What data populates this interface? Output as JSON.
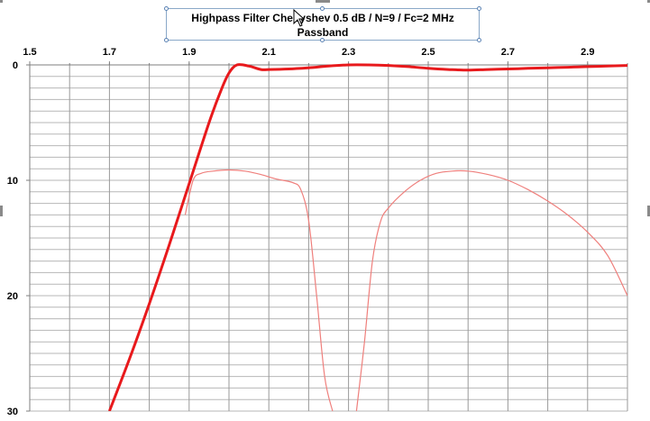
{
  "chart_data": {
    "type": "line",
    "title": "Highpass Filter Chebyshev 0.5 dB / N=9 / Fc=2 MHz",
    "subtitle": "Passband",
    "xlabel": "",
    "ylabel": "",
    "xlim": [
      1.5,
      3.0
    ],
    "ylim": [
      0,
      30
    ],
    "y_inverted": true,
    "x_axis_position": "top",
    "x_ticks": [
      "1.5",
      "1.7",
      "1.9",
      "2.1",
      "2.3",
      "2.5",
      "2.7",
      "2.9"
    ],
    "y_ticks": [
      "0",
      "10",
      "20",
      "30"
    ],
    "grid": true,
    "legend": "none",
    "series": [
      {
        "color": "#e8191c",
        "style": "thick",
        "x": [
          1.7,
          1.75,
          1.8,
          1.85,
          1.9,
          1.95,
          1.98,
          2.0,
          2.02,
          2.05,
          2.08,
          2.1,
          2.15,
          2.2,
          2.25,
          2.3,
          2.35,
          2.4,
          2.45,
          2.5,
          2.55,
          2.6,
          2.65,
          2.7,
          2.75,
          2.8,
          2.85,
          2.9,
          2.95,
          3.0
        ],
        "y": [
          30.0,
          25.5,
          20.7,
          15.6,
          10.3,
          5.0,
          2.2,
          0.7,
          0.0,
          0.1,
          0.4,
          0.4,
          0.35,
          0.25,
          0.1,
          0.0,
          0.0,
          0.05,
          0.15,
          0.3,
          0.4,
          0.45,
          0.4,
          0.35,
          0.3,
          0.25,
          0.2,
          0.15,
          0.1,
          0.05
        ]
      },
      {
        "color": "#ef7f7c",
        "style": "thin",
        "x": [
          1.89,
          1.91,
          1.93,
          1.96,
          2.0,
          2.04,
          2.08,
          2.12,
          2.16,
          2.18,
          2.2,
          2.22,
          2.24,
          2.26
        ],
        "y": [
          13.0,
          10.0,
          9.4,
          9.2,
          9.1,
          9.2,
          9.5,
          9.9,
          10.2,
          10.8,
          13.5,
          20.0,
          27.0,
          30.0
        ]
      },
      {
        "color": "#ef7f7c",
        "style": "thin",
        "x": [
          2.32,
          2.34,
          2.36,
          2.38,
          2.4,
          2.44,
          2.48,
          2.52,
          2.56,
          2.6,
          2.65,
          2.7,
          2.75,
          2.8,
          2.85,
          2.9,
          2.95,
          3.0
        ],
        "y": [
          30.0,
          24.0,
          17.0,
          13.6,
          12.4,
          11.0,
          10.0,
          9.4,
          9.2,
          9.2,
          9.5,
          10.0,
          10.8,
          11.8,
          13.0,
          14.5,
          16.5,
          20.0
        ]
      }
    ]
  }
}
